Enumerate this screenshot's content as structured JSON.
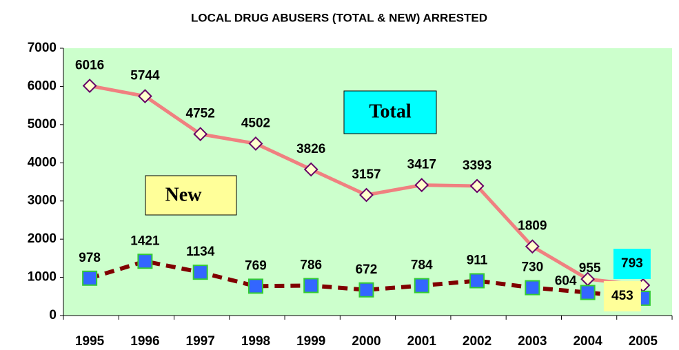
{
  "chart_data": {
    "type": "line",
    "title": "LOCAL DRUG ABUSERS (TOTAL & NEW) ARRESTED",
    "categories": [
      "1995",
      "1996",
      "1997",
      "1998",
      "1999",
      "2000",
      "2001",
      "2002",
      "2003",
      "2004",
      "2005"
    ],
    "series": [
      {
        "name": "Total",
        "color": "#f08080",
        "values": [
          6016,
          5744,
          4752,
          4502,
          3826,
          3157,
          3417,
          3393,
          1809,
          955,
          793
        ]
      },
      {
        "name": "New",
        "color": "#800000",
        "values": [
          978,
          1421,
          1134,
          769,
          786,
          672,
          784,
          911,
          730,
          604,
          453
        ]
      }
    ],
    "ylim": [
      0,
      7000
    ],
    "yticks": [
      0,
      1000,
      2000,
      3000,
      4000,
      5000,
      6000,
      7000
    ],
    "grid": false
  }
}
